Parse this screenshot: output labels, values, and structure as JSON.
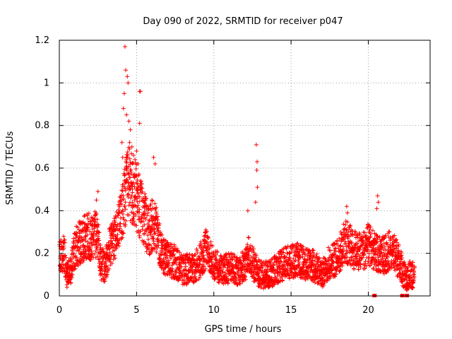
{
  "chart_data": {
    "type": "scatter",
    "title": "Day 090 of 2022, SRMTID for receiver p047",
    "xlabel": "GPS time / hours",
    "ylabel": "SRMTID / TECUs",
    "xlim": [
      0,
      24
    ],
    "ylim": [
      0,
      1.2
    ],
    "xticks": [
      0,
      5,
      10,
      15,
      20
    ],
    "yticks": [
      0,
      0.2,
      0.4,
      0.6,
      0.8,
      1,
      1.2
    ],
    "xtick_labels": [
      "0",
      "5",
      "10",
      "15",
      "20"
    ],
    "ytick_labels": [
      "0",
      "0.2",
      "0.4",
      "0.6",
      "0.8",
      "1",
      "1.2"
    ],
    "grid": true,
    "marker": "plus",
    "color": "#ff0000",
    "profile": [
      [
        0.0,
        0.18
      ],
      [
        0.3,
        0.2
      ],
      [
        0.5,
        0.1
      ],
      [
        0.7,
        0.12
      ],
      [
        1.0,
        0.22
      ],
      [
        1.3,
        0.25
      ],
      [
        1.6,
        0.27
      ],
      [
        1.9,
        0.29
      ],
      [
        2.1,
        0.26
      ],
      [
        2.3,
        0.3
      ],
      [
        2.5,
        0.27
      ],
      [
        2.7,
        0.15
      ],
      [
        3.0,
        0.14
      ],
      [
        3.2,
        0.22
      ],
      [
        3.5,
        0.25
      ],
      [
        3.8,
        0.3
      ],
      [
        4.0,
        0.37
      ],
      [
        4.2,
        0.45
      ],
      [
        4.4,
        0.55
      ],
      [
        4.6,
        0.52
      ],
      [
        4.9,
        0.48
      ],
      [
        5.2,
        0.42
      ],
      [
        5.5,
        0.36
      ],
      [
        5.8,
        0.3
      ],
      [
        6.1,
        0.35
      ],
      [
        6.3,
        0.32
      ],
      [
        6.6,
        0.2
      ],
      [
        7.0,
        0.17
      ],
      [
        7.5,
        0.16
      ],
      [
        8.0,
        0.12
      ],
      [
        8.5,
        0.13
      ],
      [
        9.0,
        0.15
      ],
      [
        9.5,
        0.22
      ],
      [
        10.0,
        0.15
      ],
      [
        10.5,
        0.12
      ],
      [
        11.0,
        0.13
      ],
      [
        11.5,
        0.12
      ],
      [
        12.0,
        0.14
      ],
      [
        12.3,
        0.2
      ],
      [
        12.6,
        0.14
      ],
      [
        13.0,
        0.1
      ],
      [
        13.5,
        0.1
      ],
      [
        14.0,
        0.12
      ],
      [
        14.5,
        0.15
      ],
      [
        15.0,
        0.16
      ],
      [
        15.5,
        0.17
      ],
      [
        16.0,
        0.15
      ],
      [
        16.5,
        0.14
      ],
      [
        17.0,
        0.1
      ],
      [
        17.5,
        0.16
      ],
      [
        18.0,
        0.18
      ],
      [
        18.5,
        0.26
      ],
      [
        19.0,
        0.22
      ],
      [
        19.5,
        0.2
      ],
      [
        20.0,
        0.24
      ],
      [
        20.5,
        0.2
      ],
      [
        21.0,
        0.19
      ],
      [
        21.5,
        0.22
      ],
      [
        22.0,
        0.16
      ],
      [
        22.4,
        0.08
      ],
      [
        22.7,
        0.1
      ],
      [
        23.0,
        0.1
      ]
    ],
    "peaks": [
      [
        4.25,
        1.17
      ],
      [
        4.3,
        1.06
      ],
      [
        4.4,
        1.03
      ],
      [
        4.45,
        1.0
      ],
      [
        4.2,
        0.95
      ],
      [
        4.15,
        0.88
      ],
      [
        4.35,
        0.85
      ],
      [
        4.5,
        0.82
      ],
      [
        4.6,
        0.78
      ],
      [
        4.55,
        0.72
      ],
      [
        4.7,
        0.7
      ],
      [
        4.8,
        0.66
      ],
      [
        4.9,
        0.64
      ],
      [
        5.2,
        0.96
      ],
      [
        5.25,
        0.96
      ],
      [
        5.2,
        0.81
      ],
      [
        5.0,
        0.68
      ],
      [
        5.1,
        0.62
      ],
      [
        4.05,
        0.72
      ],
      [
        4.1,
        0.65
      ],
      [
        6.1,
        0.65
      ],
      [
        6.2,
        0.62
      ],
      [
        12.75,
        0.71
      ],
      [
        12.8,
        0.63
      ],
      [
        12.78,
        0.59
      ],
      [
        12.82,
        0.51
      ],
      [
        12.7,
        0.44
      ],
      [
        12.2,
        0.4
      ],
      [
        2.5,
        0.49
      ],
      [
        2.4,
        0.45
      ],
      [
        20.6,
        0.47
      ],
      [
        20.65,
        0.44
      ],
      [
        20.55,
        0.41
      ],
      [
        18.6,
        0.42
      ],
      [
        18.65,
        0.39
      ]
    ],
    "bottom_markers": [
      20.4,
      22.2,
      22.5
    ]
  }
}
